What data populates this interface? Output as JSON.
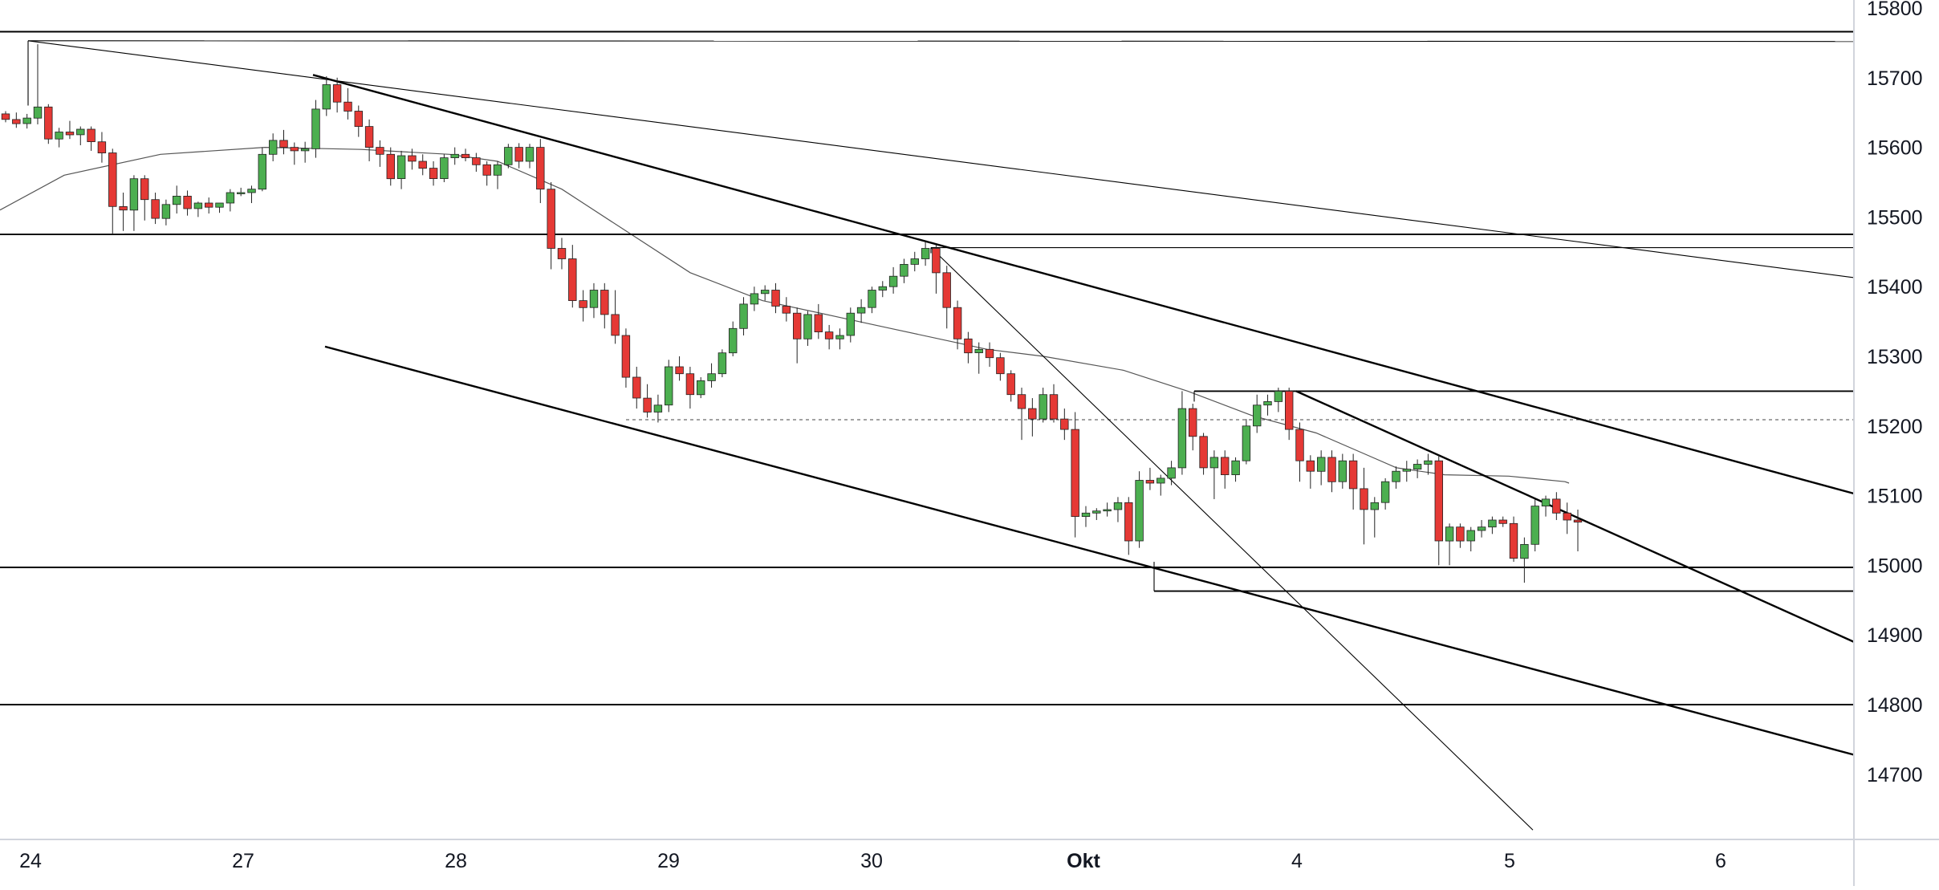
{
  "chart_data": {
    "type": "candlestick",
    "title": "",
    "xlabel": "",
    "ylabel": "",
    "ylim": [
      14620,
      15805
    ],
    "y_ticks": [
      14700,
      14800,
      14900,
      15000,
      15100,
      15200,
      15300,
      15400,
      15500,
      15600,
      15700,
      15800
    ],
    "x_ticks": [
      "24",
      "27",
      "28",
      "29",
      "30",
      "Okt",
      "4",
      "5",
      "6"
    ],
    "x_tick_bold": [
      "Okt"
    ],
    "grid": false,
    "legend": "none",
    "colors": {
      "bullish": "#4caf50",
      "bearish": "#e53935",
      "lines": "#000000",
      "moving_average": "#555555",
      "axis_text": "#131722",
      "axis_border": "#d1d4dc"
    },
    "candles": [
      [
        15648,
        15652,
        15636,
        15640
      ],
      [
        15640,
        15650,
        15628,
        15634
      ],
      [
        15634,
        15648,
        15627,
        15642
      ],
      [
        15642,
        15748,
        15633,
        15658
      ],
      [
        15658,
        15662,
        15605,
        15612
      ],
      [
        15612,
        15628,
        15600,
        15622
      ],
      [
        15622,
        15638,
        15612,
        15618
      ],
      [
        15618,
        15630,
        15603,
        15626
      ],
      [
        15626,
        15630,
        15595,
        15608
      ],
      [
        15608,
        15622,
        15578,
        15592
      ],
      [
        15592,
        15598,
        15475,
        15515
      ],
      [
        15515,
        15535,
        15480,
        15510
      ],
      [
        15510,
        15560,
        15480,
        15555
      ],
      [
        15555,
        15560,
        15495,
        15525
      ],
      [
        15525,
        15535,
        15490,
        15498
      ],
      [
        15498,
        15525,
        15488,
        15518
      ],
      [
        15518,
        15545,
        15505,
        15530
      ],
      [
        15530,
        15538,
        15502,
        15512
      ],
      [
        15512,
        15522,
        15500,
        15520
      ],
      [
        15520,
        15528,
        15505,
        15514
      ],
      [
        15514,
        15520,
        15506,
        15520
      ],
      [
        15520,
        15540,
        15508,
        15535
      ],
      [
        15535,
        15542,
        15530,
        15535
      ],
      [
        15535,
        15545,
        15520,
        15540
      ],
      [
        15540,
        15600,
        15537,
        15590
      ],
      [
        15590,
        15620,
        15580,
        15610
      ],
      [
        15610,
        15625,
        15590,
        15600
      ],
      [
        15600,
        15607,
        15575,
        15595
      ],
      [
        15595,
        15608,
        15578,
        15598
      ],
      [
        15598,
        15668,
        15585,
        15655
      ],
      [
        15655,
        15702,
        15645,
        15690
      ],
      [
        15690,
        15700,
        15650,
        15665
      ],
      [
        15665,
        15685,
        15640,
        15652
      ],
      [
        15652,
        15660,
        15615,
        15630
      ],
      [
        15630,
        15640,
        15580,
        15600
      ],
      [
        15600,
        15610,
        15572,
        15590
      ],
      [
        15590,
        15600,
        15545,
        15555
      ],
      [
        15555,
        15595,
        15540,
        15588
      ],
      [
        15588,
        15598,
        15568,
        15580
      ],
      [
        15580,
        15590,
        15560,
        15570
      ],
      [
        15570,
        15580,
        15545,
        15555
      ],
      [
        15555,
        15590,
        15550,
        15585
      ],
      [
        15585,
        15600,
        15575,
        15590
      ],
      [
        15590,
        15598,
        15580,
        15585
      ],
      [
        15585,
        15592,
        15565,
        15575
      ],
      [
        15575,
        15580,
        15545,
        15560
      ],
      [
        15560,
        15580,
        15540,
        15575
      ],
      [
        15575,
        15605,
        15570,
        15600
      ],
      [
        15600,
        15606,
        15570,
        15580
      ],
      [
        15580,
        15605,
        15570,
        15600
      ],
      [
        15600,
        15612,
        15520,
        15540
      ],
      [
        15540,
        15550,
        15425,
        15455
      ],
      [
        15455,
        15470,
        15425,
        15440
      ],
      [
        15440,
        15460,
        15370,
        15380
      ],
      [
        15380,
        15395,
        15350,
        15370
      ],
      [
        15370,
        15405,
        15355,
        15395
      ],
      [
        15395,
        15405,
        15340,
        15360
      ],
      [
        15360,
        15395,
        15318,
        15330
      ],
      [
        15330,
        15340,
        15255,
        15270
      ],
      [
        15270,
        15285,
        15225,
        15240
      ],
      [
        15240,
        15260,
        15212,
        15220
      ],
      [
        15220,
        15245,
        15205,
        15230
      ],
      [
        15230,
        15295,
        15220,
        15285
      ],
      [
        15285,
        15300,
        15265,
        15275
      ],
      [
        15275,
        15285,
        15225,
        15245
      ],
      [
        15245,
        15270,
        15240,
        15265
      ],
      [
        15265,
        15290,
        15255,
        15275
      ],
      [
        15275,
        15310,
        15270,
        15305
      ],
      [
        15305,
        15350,
        15300,
        15340
      ],
      [
        15340,
        15385,
        15330,
        15375
      ],
      [
        15375,
        15400,
        15365,
        15390
      ],
      [
        15390,
        15402,
        15380,
        15395
      ],
      [
        15395,
        15405,
        15362,
        15372
      ],
      [
        15372,
        15385,
        15350,
        15362
      ],
      [
        15362,
        15370,
        15290,
        15325
      ],
      [
        15325,
        15365,
        15315,
        15360
      ],
      [
        15360,
        15375,
        15325,
        15335
      ],
      [
        15335,
        15345,
        15310,
        15325
      ],
      [
        15325,
        15340,
        15310,
        15330
      ],
      [
        15330,
        15370,
        15320,
        15362
      ],
      [
        15362,
        15382,
        15348,
        15370
      ],
      [
        15370,
        15400,
        15362,
        15395
      ],
      [
        15395,
        15408,
        15385,
        15400
      ],
      [
        15400,
        15428,
        15390,
        15415
      ],
      [
        15415,
        15440,
        15405,
        15432
      ],
      [
        15432,
        15450,
        15422,
        15440
      ],
      [
        15440,
        15465,
        15430,
        15455
      ],
      [
        15455,
        15460,
        15390,
        15420
      ],
      [
        15420,
        15430,
        15340,
        15370
      ],
      [
        15370,
        15380,
        15310,
        15325
      ],
      [
        15325,
        15335,
        15290,
        15305
      ],
      [
        15305,
        15320,
        15275,
        15310
      ],
      [
        15310,
        15320,
        15285,
        15298
      ],
      [
        15298,
        15305,
        15265,
        15275
      ],
      [
        15275,
        15280,
        15235,
        15245
      ],
      [
        15245,
        15255,
        15180,
        15225
      ],
      [
        15225,
        15240,
        15185,
        15210
      ],
      [
        15210,
        15255,
        15205,
        15245
      ],
      [
        15245,
        15260,
        15205,
        15210
      ],
      [
        15210,
        15225,
        15180,
        15195
      ],
      [
        15195,
        15220,
        15040,
        15070
      ],
      [
        15070,
        15085,
        15055,
        15075
      ],
      [
        15075,
        15082,
        15065,
        15078
      ],
      [
        15078,
        15090,
        15070,
        15080
      ],
      [
        15080,
        15098,
        15062,
        15090
      ],
      [
        15090,
        15098,
        15015,
        15035
      ],
      [
        15035,
        15135,
        15025,
        15122
      ],
      [
        15122,
        15140,
        15108,
        15118
      ],
      [
        15118,
        15130,
        15100,
        15125
      ],
      [
        15125,
        15150,
        15115,
        15140
      ],
      [
        15140,
        15250,
        15130,
        15225
      ],
      [
        15225,
        15232,
        15165,
        15185
      ],
      [
        15185,
        15190,
        15130,
        15140
      ],
      [
        15140,
        15165,
        15095,
        15155
      ],
      [
        15155,
        15165,
        15110,
        15130
      ],
      [
        15130,
        15155,
        15120,
        15150
      ],
      [
        15150,
        15210,
        15145,
        15200
      ],
      [
        15200,
        15245,
        15190,
        15230
      ],
      [
        15230,
        15245,
        15215,
        15235
      ],
      [
        15235,
        15255,
        15220,
        15250
      ],
      [
        15250,
        15255,
        15180,
        15195
      ],
      [
        15195,
        15205,
        15120,
        15150
      ],
      [
        15150,
        15158,
        15110,
        15135
      ],
      [
        15135,
        15165,
        15115,
        15155
      ],
      [
        15155,
        15165,
        15105,
        15120
      ],
      [
        15120,
        15160,
        15110,
        15150
      ],
      [
        15150,
        15160,
        15080,
        15110
      ],
      [
        15110,
        15140,
        15030,
        15080
      ],
      [
        15080,
        15098,
        15040,
        15090
      ],
      [
        15090,
        15125,
        15080,
        15120
      ],
      [
        15120,
        15142,
        15110,
        15135
      ],
      [
        15135,
        15150,
        15120,
        15138
      ],
      [
        15138,
        15152,
        15125,
        15145
      ],
      [
        15145,
        15160,
        15130,
        15150
      ],
      [
        15150,
        15158,
        15000,
        15035
      ],
      [
        15035,
        15060,
        15000,
        15055
      ],
      [
        15055,
        15060,
        15025,
        15035
      ],
      [
        15035,
        15055,
        15020,
        15050
      ],
      [
        15050,
        15065,
        15040,
        15055
      ],
      [
        15055,
        15070,
        15045,
        15065
      ],
      [
        15065,
        15070,
        15055,
        15060
      ],
      [
        15060,
        15070,
        15005,
        15010
      ],
      [
        15010,
        15040,
        14975,
        15030
      ],
      [
        15030,
        15095,
        15020,
        15085
      ],
      [
        15085,
        15100,
        15070,
        15095
      ],
      [
        15095,
        15105,
        15065,
        15075
      ],
      [
        15075,
        15090,
        15045,
        15065
      ],
      [
        15065,
        15080,
        15020,
        15062
      ]
    ],
    "candle_x_range": [
      7,
      1966
    ],
    "moving_average": [
      [
        0,
        15510
      ],
      [
        80,
        15560
      ],
      [
        200,
        15590
      ],
      [
        330,
        15600
      ],
      [
        450,
        15597
      ],
      [
        560,
        15590
      ],
      [
        620,
        15580
      ],
      [
        700,
        15540
      ],
      [
        780,
        15480
      ],
      [
        860,
        15420
      ],
      [
        950,
        15380
      ],
      [
        1050,
        15355
      ],
      [
        1110,
        15340
      ],
      [
        1190,
        15320
      ],
      [
        1230,
        15310
      ],
      [
        1300,
        15300
      ],
      [
        1400,
        15280
      ],
      [
        1480,
        15250
      ],
      [
        1560,
        15215
      ],
      [
        1640,
        15190
      ],
      [
        1700,
        15160
      ],
      [
        1740,
        15140
      ],
      [
        1800,
        15130
      ],
      [
        1880,
        15128
      ],
      [
        1950,
        15120
      ],
      [
        1955,
        15118
      ]
    ],
    "lines": [
      {
        "kind": "hline",
        "y": 15766
      },
      {
        "kind": "hline",
        "y": 15475
      },
      {
        "kind": "hline",
        "y": 14997
      },
      {
        "kind": "hline",
        "y": 14800
      },
      {
        "kind": "segment",
        "points": [
          [
            35,
            15753
          ],
          [
            2310,
            15752
          ]
        ],
        "thin": true
      },
      {
        "kind": "segment",
        "points": [
          [
            1160,
            15456
          ],
          [
            2310,
            15456
          ]
        ],
        "thin": true
      },
      {
        "kind": "segment",
        "points": [
          [
            155,
            15475
          ],
          [
            2310,
            15475
          ]
        ]
      },
      {
        "kind": "segment",
        "points": [
          [
            1488,
            15250
          ],
          [
            2310,
            15250
          ]
        ]
      },
      {
        "kind": "segment",
        "points": [
          [
            1438,
            14963
          ],
          [
            2310,
            14963
          ]
        ]
      },
      {
        "kind": "segment",
        "points": [
          [
            780,
            15209
          ],
          [
            2310,
            15209
          ]
        ],
        "dashed": true
      },
      {
        "kind": "segment",
        "points": [
          [
            35,
            15753
          ],
          [
            2310,
            15413
          ]
        ],
        "thin": true
      },
      {
        "kind": "segment",
        "points": [
          [
            390,
            15704
          ],
          [
            2310,
            15103
          ]
        ],
        "thick": true
      },
      {
        "kind": "segment",
        "points": [
          [
            405,
            15314
          ],
          [
            2310,
            14728
          ]
        ],
        "thick": true
      },
      {
        "kind": "segment",
        "points": [
          [
            1615,
            15250
          ],
          [
            2310,
            14890
          ]
        ],
        "thick": true
      },
      {
        "kind": "segment",
        "points": [
          [
            1160,
            15456
          ],
          [
            1910,
            14620
          ]
        ],
        "thin": true
      },
      {
        "kind": "segment",
        "points": [
          [
            1438,
            14963
          ],
          [
            1438,
            15005
          ]
        ],
        "thin": true
      },
      {
        "kind": "segment",
        "points": [
          [
            1488,
            15250
          ],
          [
            1488,
            15235
          ]
        ],
        "thin": true
      },
      {
        "kind": "segment",
        "points": [
          [
            35,
            15753
          ],
          [
            35,
            15660
          ]
        ],
        "thin": true
      },
      {
        "kind": "segment",
        "points": [
          [
            1160,
            15456
          ],
          [
            1160,
            15448
          ]
        ],
        "thin": true
      }
    ]
  }
}
